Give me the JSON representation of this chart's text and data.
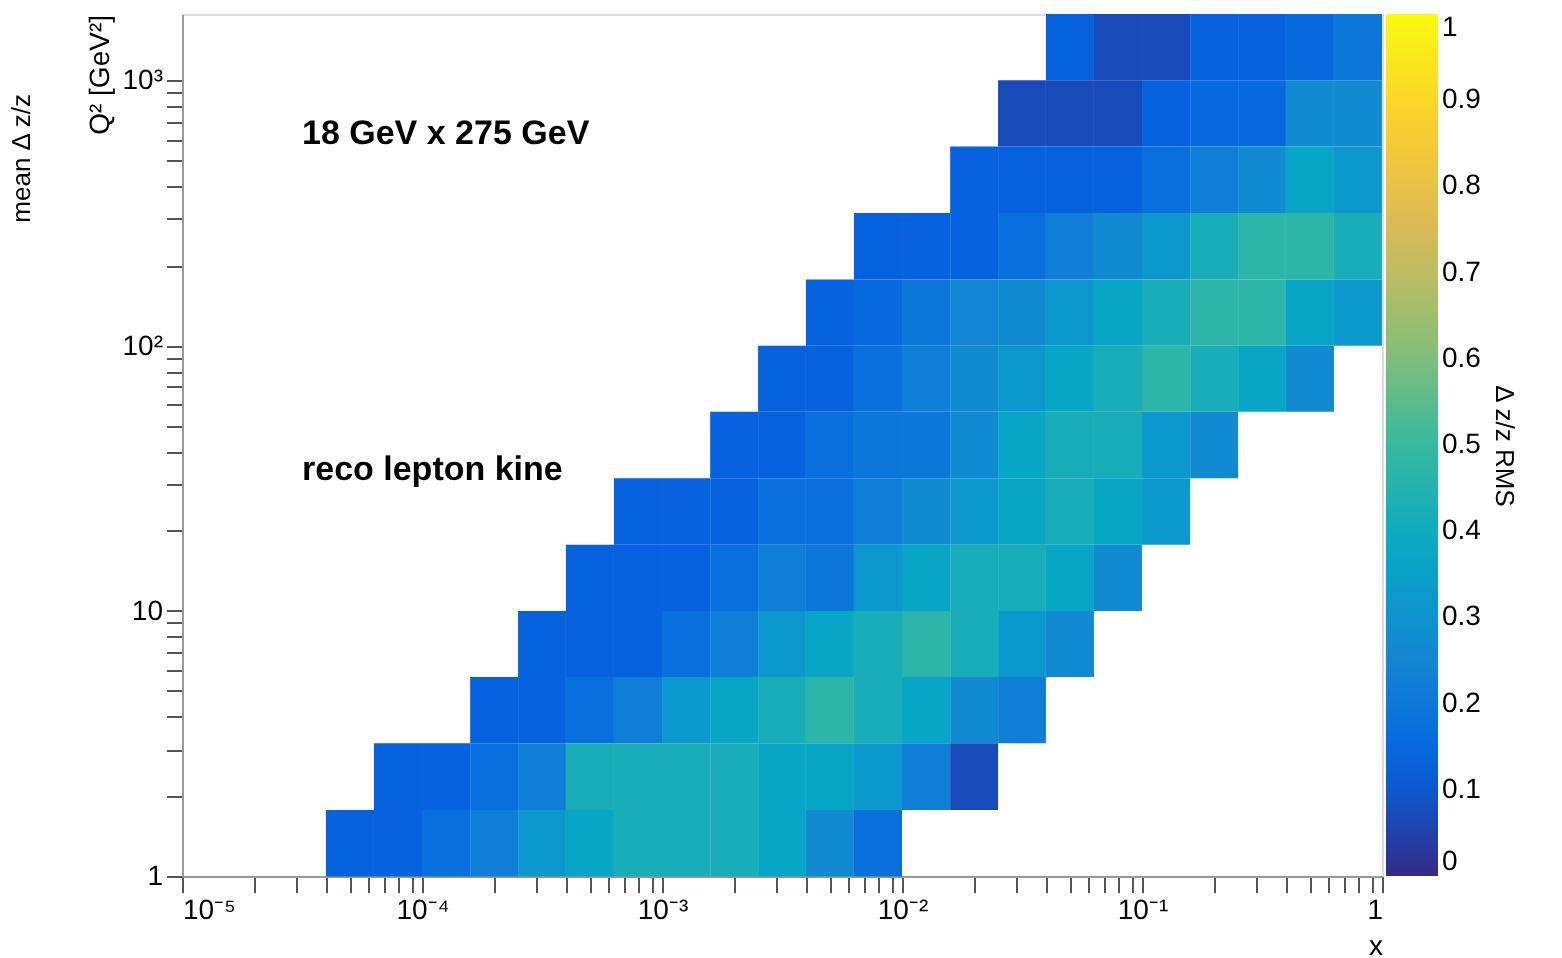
{
  "chart_data": {
    "type": "heatmap",
    "annotations": [
      "18 GeV x 275 GeV",
      "reco lepton kine",
      "mean Δ z/z"
    ],
    "xlabel": "x",
    "ylabel": "Q² [GeV²]",
    "clabel": "Δ z/z RMS",
    "log": "xy",
    "grid": false,
    "xlim": [
      1e-05,
      1
    ],
    "ylim": [
      1,
      1778
    ],
    "xticks": [
      {
        "value": 1e-05,
        "label": "10⁻⁵"
      },
      {
        "value": 2e-05,
        "label": null
      },
      {
        "value": 3e-05,
        "label": null
      },
      {
        "value": 4e-05,
        "label": null
      },
      {
        "value": 5e-05,
        "label": null
      },
      {
        "value": 6e-05,
        "label": null
      },
      {
        "value": 7e-05,
        "label": null
      },
      {
        "value": 8e-05,
        "label": null
      },
      {
        "value": 9e-05,
        "label": null
      },
      {
        "value": 0.0001,
        "label": "10⁻⁴"
      },
      {
        "value": 0.0002,
        "label": null
      },
      {
        "value": 0.0003,
        "label": null
      },
      {
        "value": 0.0004,
        "label": null
      },
      {
        "value": 0.0005,
        "label": null
      },
      {
        "value": 0.0006,
        "label": null
      },
      {
        "value": 0.0007,
        "label": null
      },
      {
        "value": 0.0008,
        "label": null
      },
      {
        "value": 0.0009,
        "label": null
      },
      {
        "value": 0.001,
        "label": "10⁻³"
      },
      {
        "value": 0.002,
        "label": null
      },
      {
        "value": 0.003,
        "label": null
      },
      {
        "value": 0.004,
        "label": null
      },
      {
        "value": 0.005,
        "label": null
      },
      {
        "value": 0.006,
        "label": null
      },
      {
        "value": 0.007,
        "label": null
      },
      {
        "value": 0.008,
        "label": null
      },
      {
        "value": 0.009,
        "label": null
      },
      {
        "value": 0.01,
        "label": "10⁻²"
      },
      {
        "value": 0.02,
        "label": null
      },
      {
        "value": 0.03,
        "label": null
      },
      {
        "value": 0.04,
        "label": null
      },
      {
        "value": 0.05,
        "label": null
      },
      {
        "value": 0.06,
        "label": null
      },
      {
        "value": 0.07,
        "label": null
      },
      {
        "value": 0.08,
        "label": null
      },
      {
        "value": 0.09,
        "label": null
      },
      {
        "value": 0.1,
        "label": "10⁻¹"
      },
      {
        "value": 0.2,
        "label": null
      },
      {
        "value": 0.3,
        "label": null
      },
      {
        "value": 0.4,
        "label": null
      },
      {
        "value": 0.5,
        "label": null
      },
      {
        "value": 0.6,
        "label": null
      },
      {
        "value": 0.7,
        "label": null
      },
      {
        "value": 0.8,
        "label": null
      },
      {
        "value": 0.9,
        "label": null
      },
      1
    ],
    "yticks": [
      1,
      {
        "value": 2,
        "label": null
      },
      {
        "value": 3,
        "label": null
      },
      {
        "value": 4,
        "label": null
      },
      {
        "value": 5,
        "label": null
      },
      {
        "value": 6,
        "label": null
      },
      {
        "value": 7,
        "label": null
      },
      {
        "value": 8,
        "label": null
      },
      {
        "value": 9,
        "label": null
      },
      10,
      {
        "value": 20,
        "label": null
      },
      {
        "value": 30,
        "label": null
      },
      {
        "value": 40,
        "label": null
      },
      {
        "value": 50,
        "label": null
      },
      {
        "value": 60,
        "label": null
      },
      {
        "value": 70,
        "label": null
      },
      {
        "value": 80,
        "label": null
      },
      {
        "value": 90,
        "label": null
      },
      {
        "value": 100,
        "label": "10²"
      },
      {
        "value": 200,
        "label": null
      },
      {
        "value": 300,
        "label": null
      },
      {
        "value": 400,
        "label": null
      },
      {
        "value": 500,
        "label": null
      },
      {
        "value": 600,
        "label": null
      },
      {
        "value": 700,
        "label": null
      },
      {
        "value": 800,
        "label": null
      },
      {
        "value": 900,
        "label": null
      },
      {
        "value": 1000,
        "label": "10³"
      }
    ],
    "clim": [
      0,
      1
    ],
    "cticks": [
      0,
      0.1,
      0.2,
      0.3,
      0.4,
      0.5,
      0.6,
      0.7,
      0.8,
      0.9,
      1
    ],
    "x": [
      1.26e-05,
      2e-05,
      3.16e-05,
      5.01e-05,
      7.94e-05,
      0.000126,
      0.0002,
      0.000316,
      0.000501,
      0.000794,
      0.00126,
      0.002,
      0.00316,
      0.00501,
      0.00794,
      0.0126,
      0.02,
      0.0316,
      0.0501,
      0.0794,
      0.126,
      0.2,
      0.316,
      0.501,
      0.794
    ],
    "y": [
      1334,
      750,
      422,
      237,
      133,
      75,
      42.2,
      23.7,
      13.3,
      7.5,
      4.22,
      2.37,
      1.33
    ],
    "cells": [
      [
        null,
        null,
        null,
        null,
        null,
        null,
        null,
        null,
        null,
        null,
        null,
        null,
        null,
        null,
        null,
        null,
        null,
        null,
        0.12,
        0.07,
        0.07,
        0.12,
        0.12,
        0.15,
        0.2
      ],
      [
        null,
        null,
        null,
        null,
        null,
        null,
        null,
        null,
        null,
        null,
        null,
        null,
        null,
        null,
        null,
        null,
        null,
        0.07,
        0.07,
        0.07,
        0.12,
        0.15,
        0.15,
        0.27,
        0.27
      ],
      [
        null,
        null,
        null,
        null,
        null,
        null,
        null,
        null,
        null,
        null,
        null,
        null,
        null,
        null,
        null,
        null,
        0.12,
        0.12,
        0.12,
        0.12,
        0.17,
        0.22,
        0.27,
        0.37,
        0.32
      ],
      [
        null,
        null,
        null,
        null,
        null,
        null,
        null,
        null,
        null,
        null,
        null,
        null,
        null,
        null,
        0.12,
        0.12,
        0.12,
        0.17,
        0.22,
        0.27,
        0.32,
        0.42,
        0.47,
        0.47,
        0.42
      ],
      [
        null,
        null,
        null,
        null,
        null,
        null,
        null,
        null,
        null,
        null,
        null,
        null,
        null,
        0.12,
        0.15,
        0.2,
        0.25,
        0.27,
        0.32,
        0.37,
        0.42,
        0.47,
        0.47,
        0.37,
        0.32
      ],
      [
        null,
        null,
        null,
        null,
        null,
        null,
        null,
        null,
        null,
        null,
        null,
        null,
        0.12,
        0.12,
        0.17,
        0.22,
        0.27,
        0.32,
        0.37,
        0.42,
        0.47,
        0.42,
        0.37,
        0.27,
        null
      ],
      [
        null,
        null,
        null,
        null,
        null,
        null,
        null,
        null,
        null,
        null,
        null,
        0.12,
        0.12,
        0.17,
        0.2,
        0.2,
        0.27,
        0.37,
        0.42,
        0.42,
        0.32,
        0.27,
        null,
        null,
        null
      ],
      [
        null,
        null,
        null,
        null,
        null,
        null,
        null,
        null,
        null,
        0.12,
        0.12,
        0.12,
        0.17,
        0.17,
        0.22,
        0.27,
        0.32,
        0.37,
        0.42,
        0.37,
        0.32,
        null,
        null,
        null,
        null
      ],
      [
        null,
        null,
        null,
        null,
        null,
        null,
        null,
        null,
        0.12,
        0.12,
        0.12,
        0.17,
        0.22,
        0.2,
        0.32,
        0.37,
        0.42,
        0.42,
        0.37,
        0.27,
        null,
        null,
        null,
        null,
        null
      ],
      [
        null,
        null,
        null,
        null,
        null,
        null,
        null,
        0.12,
        0.12,
        0.12,
        0.17,
        0.22,
        0.32,
        0.37,
        0.42,
        0.47,
        0.42,
        0.32,
        0.27,
        null,
        null,
        null,
        null,
        null,
        null
      ],
      [
        null,
        null,
        null,
        null,
        null,
        null,
        0.12,
        0.12,
        0.17,
        0.22,
        0.32,
        0.37,
        0.42,
        0.47,
        0.42,
        0.37,
        0.27,
        0.22,
        null,
        null,
        null,
        null,
        null,
        null,
        null
      ],
      [
        null,
        null,
        null,
        null,
        0.12,
        0.12,
        0.17,
        0.22,
        0.42,
        0.42,
        0.42,
        0.42,
        0.37,
        0.37,
        0.32,
        0.22,
        0.07,
        null,
        null,
        null,
        null,
        null,
        null,
        null,
        null
      ],
      [
        null,
        null,
        null,
        0.12,
        0.12,
        0.17,
        0.22,
        0.32,
        0.37,
        0.42,
        0.42,
        0.42,
        0.37,
        0.27,
        0.17,
        null,
        null,
        null,
        null,
        null,
        null,
        null,
        null,
        null,
        null
      ]
    ]
  }
}
